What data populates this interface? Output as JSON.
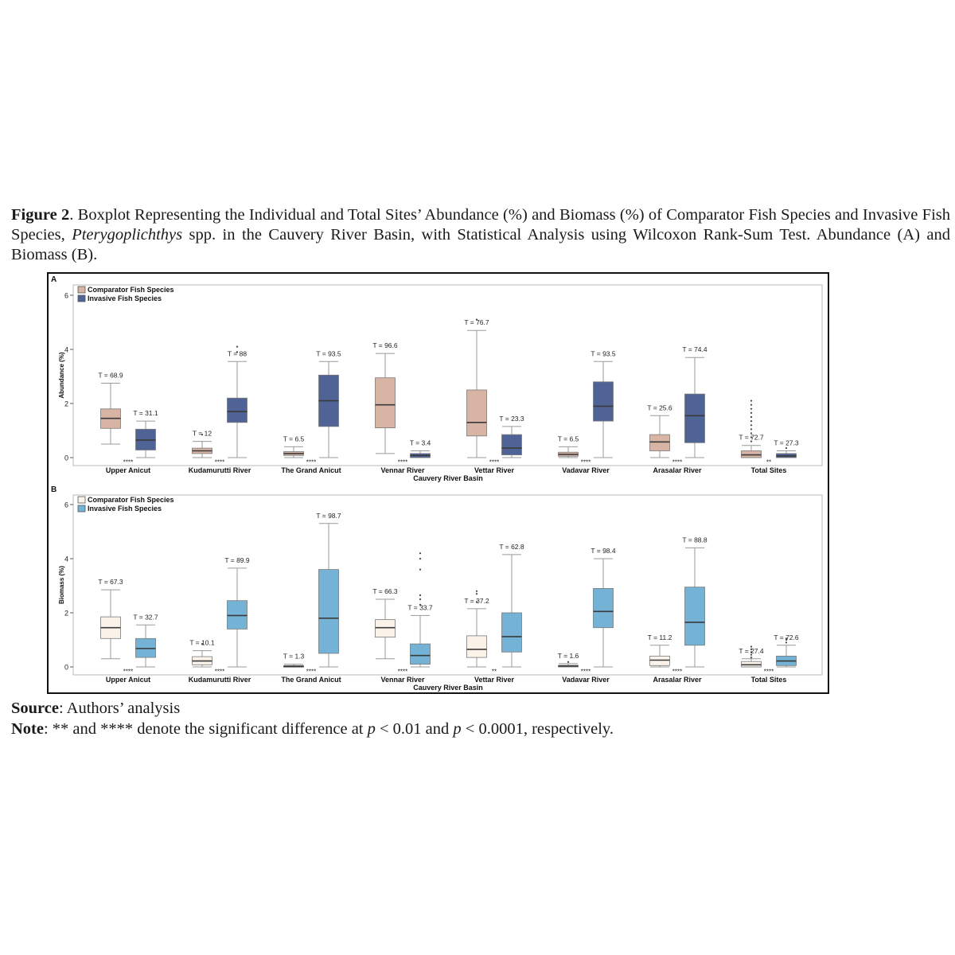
{
  "caption": {
    "label": "Figure 2",
    "text_before_italic": ". Boxplot Representing the Individual and Total Sites’ Abundance (%) and Biomass (%) of Comparator Fish Species and Invasive Fish Species, ",
    "italic": "Pterygoplichthys",
    "text_after_italic": " spp. in the Cauvery River Basin, with Statistical Analysis using Wilcoxon Rank-Sum Test. Abundance (A) and Biomass (B)."
  },
  "source": {
    "label": "Source",
    "text": ": Authors’ analysis"
  },
  "note": {
    "label": "Note",
    "part1": ": ** and **** denote the significant difference at ",
    "p1": "p",
    "part2": " < 0.01 and ",
    "p2": "p",
    "part3": " < 0.0001, respectively."
  },
  "chart_data": [
    {
      "type": "box",
      "panel_label": "A",
      "title": "",
      "xlabel": "Cauvery River Basin",
      "ylabel": "Abundance (%)",
      "ylim": [
        0,
        6
      ],
      "yticks": [
        0,
        2,
        4,
        6
      ],
      "legend": [
        "Comparator Fish Species",
        "Invasive Fish Species"
      ],
      "colors": {
        "comparator": "#d8b4a4",
        "invasive": "#4f6396"
      },
      "categories": [
        "Upper Anicut",
        "Kudamurutti River",
        "The Grand Anicut",
        "Vennar River",
        "Vettar River",
        "Vadavar River",
        "Arasalar River",
        "Total Sites"
      ],
      "significance": [
        "****",
        "****",
        "****",
        "****",
        "****",
        "****",
        "****",
        "**"
      ],
      "series": [
        {
          "name": "Comparator Fish Species",
          "boxes": [
            {
              "t_label": "T = 68.9",
              "min": 0.5,
              "q1": 1.08,
              "median": 1.45,
              "q3": 1.8,
              "max": 2.75,
              "outliers": []
            },
            {
              "t_label": "T = 12",
              "min": 0.0,
              "q1": 0.15,
              "median": 0.25,
              "q3": 0.35,
              "max": 0.6,
              "outliers": [
                0.85
              ]
            },
            {
              "t_label": "T = 6.5",
              "min": 0.0,
              "q1": 0.08,
              "median": 0.15,
              "q3": 0.22,
              "max": 0.4,
              "outliers": []
            },
            {
              "t_label": "T = 96.6",
              "min": 0.15,
              "q1": 1.1,
              "median": 1.95,
              "q3": 2.95,
              "max": 3.85,
              "outliers": []
            },
            {
              "t_label": "T = 76.7",
              "min": 0.0,
              "q1": 0.8,
              "median": 1.3,
              "q3": 2.5,
              "max": 4.7,
              "outliers": [
                5.1
              ]
            },
            {
              "t_label": "T = 6.5",
              "min": 0.0,
              "q1": 0.05,
              "median": 0.12,
              "q3": 0.2,
              "max": 0.4,
              "outliers": []
            },
            {
              "t_label": "T = 25.6",
              "min": 0.0,
              "q1": 0.25,
              "median": 0.58,
              "q3": 0.85,
              "max": 1.55,
              "outliers": []
            },
            {
              "t_label": "T = 72.7",
              "min": 0.0,
              "q1": 0.0,
              "median": 0.1,
              "q3": 0.25,
              "max": 0.45,
              "outliers": [
                0.6,
                0.75,
                0.9,
                1.05,
                1.2,
                1.35,
                1.5,
                1.65,
                1.8,
                1.95,
                2.1
              ]
            }
          ]
        },
        {
          "name": "Invasive Fish Species",
          "boxes": [
            {
              "t_label": "T = 31.1",
              "min": 0.0,
              "q1": 0.28,
              "median": 0.65,
              "q3": 1.05,
              "max": 1.35,
              "outliers": []
            },
            {
              "t_label": "T = 88",
              "min": 0.0,
              "q1": 1.3,
              "median": 1.7,
              "q3": 2.2,
              "max": 3.55,
              "outliers": [
                3.9,
                4.1
              ]
            },
            {
              "t_label": "T = 93.5",
              "min": 0.0,
              "q1": 1.15,
              "median": 2.1,
              "q3": 3.05,
              "max": 3.55,
              "outliers": []
            },
            {
              "t_label": "T = 3.4",
              "min": 0.0,
              "q1": 0.0,
              "median": 0.08,
              "q3": 0.15,
              "max": 0.25,
              "outliers": []
            },
            {
              "t_label": "T = 23.3",
              "min": 0.0,
              "q1": 0.1,
              "median": 0.35,
              "q3": 0.85,
              "max": 1.15,
              "outliers": []
            },
            {
              "t_label": "T = 93.5",
              "min": 0.0,
              "q1": 1.35,
              "median": 1.9,
              "q3": 2.8,
              "max": 3.55,
              "outliers": []
            },
            {
              "t_label": "T = 74.4",
              "min": 0.0,
              "q1": 0.55,
              "median": 1.55,
              "q3": 2.35,
              "max": 3.7,
              "outliers": []
            },
            {
              "t_label": "T = 27.3",
              "min": 0.0,
              "q1": 0.0,
              "median": 0.06,
              "q3": 0.15,
              "max": 0.25,
              "outliers": [
                0.35
              ]
            }
          ]
        }
      ]
    },
    {
      "type": "box",
      "panel_label": "B",
      "title": "",
      "xlabel": "Cauvery River Basin",
      "ylabel": "Biomass (%)",
      "ylim": [
        0,
        6
      ],
      "yticks": [
        0,
        2,
        4,
        6
      ],
      "legend": [
        "Comparator Fish Species",
        "Invasive Fish Species"
      ],
      "colors": {
        "comparator": "#fbf3ea",
        "invasive": "#74b3d6"
      },
      "categories": [
        "Upper Anicut",
        "Kudamurutti River",
        "The Grand Anicut",
        "Vennar River",
        "Vettar River",
        "Vadavar River",
        "Arasalar River",
        "Total Sites"
      ],
      "significance": [
        "****",
        "****",
        "****",
        "****",
        "**",
        "****",
        "****",
        "****"
      ],
      "series": [
        {
          "name": "Comparator Fish Species",
          "boxes": [
            {
              "t_label": "T = 67.3",
              "min": 0.3,
              "q1": 1.05,
              "median": 1.45,
              "q3": 1.85,
              "max": 2.85,
              "outliers": []
            },
            {
              "t_label": "T = 10.1",
              "min": 0.0,
              "q1": 0.08,
              "median": 0.22,
              "q3": 0.38,
              "max": 0.6,
              "outliers": [
                0.85
              ]
            },
            {
              "t_label": "T = 1.3",
              "min": 0.0,
              "q1": 0.0,
              "median": 0.02,
              "q3": 0.05,
              "max": 0.1,
              "outliers": []
            },
            {
              "t_label": "T = 66.3",
              "min": 0.3,
              "q1": 1.1,
              "median": 1.45,
              "q3": 1.75,
              "max": 2.5,
              "outliers": []
            },
            {
              "t_label": "T = 37.2",
              "min": 0.0,
              "q1": 0.35,
              "median": 0.65,
              "q3": 1.15,
              "max": 2.15,
              "outliers": [
                2.4,
                2.7,
                2.8
              ]
            },
            {
              "t_label": "T = 1.6",
              "min": 0.0,
              "q1": 0.0,
              "median": 0.03,
              "q3": 0.06,
              "max": 0.12,
              "outliers": [
                0.18
              ]
            },
            {
              "t_label": "T = 11.2",
              "min": 0.0,
              "q1": 0.05,
              "median": 0.25,
              "q3": 0.4,
              "max": 0.8,
              "outliers": []
            },
            {
              "t_label": "T = 27.4",
              "min": 0.0,
              "q1": 0.0,
              "median": 0.08,
              "q3": 0.2,
              "max": 0.3,
              "outliers": [
                0.35,
                0.45,
                0.55,
                0.65,
                0.75
              ]
            }
          ]
        },
        {
          "name": "Invasive Fish Species",
          "boxes": [
            {
              "t_label": "T = 32.7",
              "min": 0.0,
              "q1": 0.35,
              "median": 0.68,
              "q3": 1.05,
              "max": 1.55,
              "outliers": []
            },
            {
              "t_label": "T = 89.9",
              "min": 0.0,
              "q1": 1.4,
              "median": 1.9,
              "q3": 2.45,
              "max": 3.65,
              "outliers": []
            },
            {
              "t_label": "T = 98.7",
              "min": 0.0,
              "q1": 0.5,
              "median": 1.8,
              "q3": 3.6,
              "max": 5.3,
              "outliers": []
            },
            {
              "t_label": "T = 33.7",
              "min": 0.0,
              "q1": 0.1,
              "median": 0.42,
              "q3": 0.85,
              "max": 1.9,
              "outliers": [
                2.3,
                2.5,
                2.65,
                3.6,
                4.0,
                4.2
              ]
            },
            {
              "t_label": "T = 62.8",
              "min": 0.0,
              "q1": 0.55,
              "median": 1.12,
              "q3": 2.0,
              "max": 4.15,
              "outliers": []
            },
            {
              "t_label": "T = 98.4",
              "min": 0.0,
              "q1": 1.45,
              "median": 2.05,
              "q3": 2.9,
              "max": 4.0,
              "outliers": []
            },
            {
              "t_label": "T = 88.8",
              "min": 0.0,
              "q1": 0.8,
              "median": 1.65,
              "q3": 2.95,
              "max": 4.4,
              "outliers": []
            },
            {
              "t_label": "T = 72.6",
              "min": 0.0,
              "q1": 0.05,
              "median": 0.22,
              "q3": 0.4,
              "max": 0.8,
              "outliers": [
                0.9,
                1.0,
                1.05
              ]
            }
          ]
        }
      ]
    }
  ]
}
